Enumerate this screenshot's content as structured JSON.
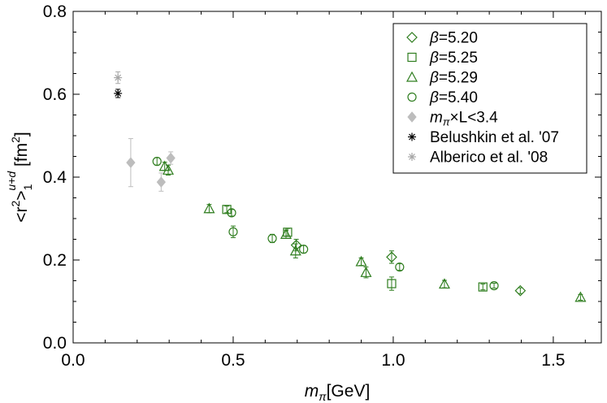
{
  "chart_data": {
    "type": "scatter",
    "xlabel": {
      "var": "m",
      "sub": "π",
      "unit": "[GeV]"
    },
    "ylabel": {
      "pre": "<r",
      "sup": "2",
      "post": ">",
      "sub": "1",
      "sup2": "u+d",
      "unit": " [fm",
      "unit_sup": "2",
      "unit_close": "]"
    },
    "xlim": [
      0.0,
      1.65
    ],
    "ylim": [
      0.0,
      0.8
    ],
    "xticks": [
      {
        "v": 0.0,
        "label": "0.0"
      },
      {
        "v": 0.5,
        "label": "0.5"
      },
      {
        "v": 1.0,
        "label": "1.0"
      },
      {
        "v": 1.5,
        "label": "1.5"
      }
    ],
    "yticks": [
      {
        "v": 0.0,
        "label": "0.0"
      },
      {
        "v": 0.2,
        "label": "0.2"
      },
      {
        "v": 0.4,
        "label": "0.4"
      },
      {
        "v": 0.6,
        "label": "0.6"
      },
      {
        "v": 0.8,
        "label": "0.8"
      }
    ],
    "grid": false,
    "legend_position": "top-right",
    "series": [
      {
        "key": "b520",
        "name": "β=5.20",
        "legend_prefix": "β",
        "legend_rest": "=5.20",
        "marker": "diamond-open",
        "color": "#2e7d1e",
        "points": [
          {
            "x": 0.697,
            "y": 0.236,
            "err": 0.014
          },
          {
            "x": 0.995,
            "y": 0.207,
            "err": 0.015
          },
          {
            "x": 1.397,
            "y": 0.126,
            "err": 0.007
          }
        ]
      },
      {
        "key": "b525",
        "name": "β=5.25",
        "legend_prefix": "β",
        "legend_rest": "=5.25",
        "marker": "square-open",
        "color": "#2e7d1e",
        "points": [
          {
            "x": 0.48,
            "y": 0.322,
            "err": 0.008
          },
          {
            "x": 0.67,
            "y": 0.267,
            "err": 0.009
          },
          {
            "x": 0.995,
            "y": 0.143,
            "err": 0.016
          },
          {
            "x": 1.28,
            "y": 0.135,
            "err": 0.007
          }
        ]
      },
      {
        "key": "b529",
        "name": "β=5.29",
        "legend_prefix": "β",
        "legend_rest": "=5.29",
        "marker": "triangle-open",
        "color": "#2e7d1e",
        "points": [
          {
            "x": 0.286,
            "y": 0.426,
            "err": 0.01
          },
          {
            "x": 0.297,
            "y": 0.417,
            "err": 0.012
          },
          {
            "x": 0.425,
            "y": 0.324,
            "err": 0.01
          },
          {
            "x": 0.665,
            "y": 0.262,
            "err": 0.01
          },
          {
            "x": 0.695,
            "y": 0.222,
            "err": 0.017
          },
          {
            "x": 0.9,
            "y": 0.196,
            "err": 0.009
          },
          {
            "x": 0.915,
            "y": 0.17,
            "err": 0.013
          },
          {
            "x": 1.16,
            "y": 0.142,
            "err": 0.009
          },
          {
            "x": 1.585,
            "y": 0.11,
            "err": 0.007
          }
        ]
      },
      {
        "key": "b540",
        "name": "β=5.40",
        "legend_prefix": "β",
        "legend_rest": "=5.40",
        "marker": "circle-open",
        "color": "#2e7d1e",
        "points": [
          {
            "x": 0.262,
            "y": 0.438,
            "err": 0.009
          },
          {
            "x": 0.495,
            "y": 0.314,
            "err": 0.008
          },
          {
            "x": 0.5,
            "y": 0.268,
            "err": 0.014
          },
          {
            "x": 0.622,
            "y": 0.252,
            "err": 0.01
          },
          {
            "x": 0.72,
            "y": 0.226,
            "err": 0.009
          },
          {
            "x": 1.02,
            "y": 0.183,
            "err": 0.008
          },
          {
            "x": 1.315,
            "y": 0.138,
            "err": 0.006
          }
        ]
      },
      {
        "key": "small",
        "name": "mπ×L<3.4",
        "legend_prefix": "m",
        "legend_sub": "π",
        "legend_rest": "×L<3.4",
        "marker": "diamond-filled",
        "color": "#bdbdbd",
        "points": [
          {
            "x": 0.18,
            "y": 0.435,
            "err": 0.058
          },
          {
            "x": 0.275,
            "y": 0.388,
            "err": 0.022
          },
          {
            "x": 0.305,
            "y": 0.446,
            "err": 0.015
          }
        ]
      },
      {
        "key": "bel",
        "name": "Belushkin et al. '07",
        "legend_rest": "Belushkin et al. '07",
        "marker": "asterisk",
        "color": "#000000",
        "points": [
          {
            "x": 0.14,
            "y": 0.602,
            "err": 0.01
          }
        ]
      },
      {
        "key": "alb",
        "name": "Alberico et al. '08",
        "legend_rest": "Alberico et al. '08",
        "marker": "asterisk",
        "color": "#a6a6a6",
        "points": [
          {
            "x": 0.14,
            "y": 0.64,
            "err": 0.014
          }
        ]
      }
    ]
  }
}
